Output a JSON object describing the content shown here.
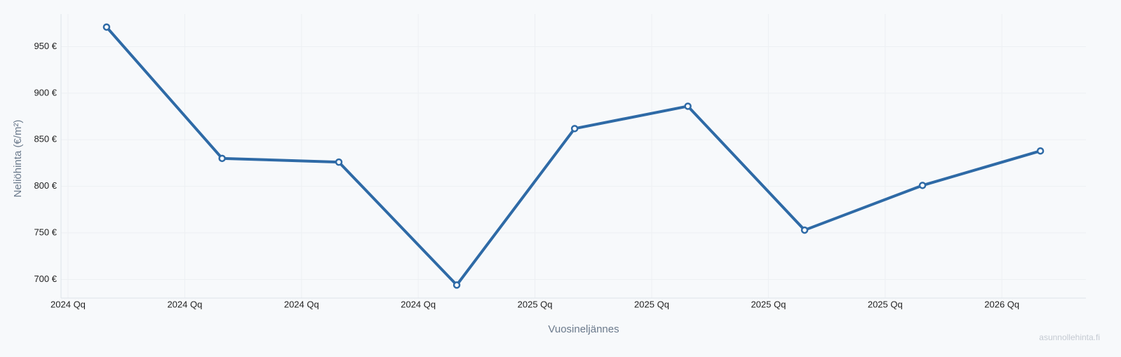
{
  "chart_data": {
    "type": "line",
    "x_label": "Vuosineljännes",
    "y_label": "Neliöhinta (€/m²)",
    "watermark": "asunnollehinta.fi",
    "x": [
      0.33,
      1.32,
      2.32,
      3.33,
      4.34,
      5.31,
      6.31,
      7.32,
      8.33
    ],
    "series": [
      {
        "color": "#2e6aa6",
        "values": [
          971,
          830,
          826,
          694,
          862,
          886,
          753,
          801,
          838
        ]
      }
    ],
    "xlim": [
      -0.06,
      8.72
    ],
    "xticks": [
      {
        "value": 0,
        "label": "2024 Qq"
      },
      {
        "value": 1,
        "label": "2024 Qq"
      },
      {
        "value": 2,
        "label": "2024 Qq"
      },
      {
        "value": 3,
        "label": "2024 Qq"
      },
      {
        "value": 4,
        "label": "2025 Qq"
      },
      {
        "value": 5,
        "label": "2025 Qq"
      },
      {
        "value": 6,
        "label": "2025 Qq"
      },
      {
        "value": 7,
        "label": "2025 Qq"
      },
      {
        "value": 8,
        "label": "2026 Qq"
      }
    ],
    "ylim": [
      680,
      985
    ],
    "yticks": [
      {
        "value": 700,
        "label": "700 €"
      },
      {
        "value": 750,
        "label": "750 €"
      },
      {
        "value": 800,
        "label": "800 €"
      },
      {
        "value": 850,
        "label": "850 €"
      },
      {
        "value": 900,
        "label": "900 €"
      },
      {
        "value": 950,
        "label": "950 €"
      }
    ],
    "grid": true
  }
}
